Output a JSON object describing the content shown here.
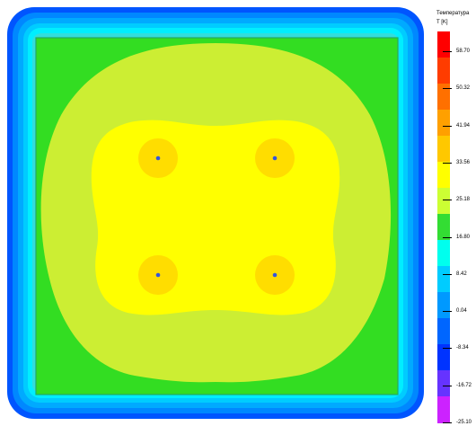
{
  "legend": {
    "title": "Температура",
    "unit": "T [K]",
    "ticks": [
      "58.70",
      "50.32",
      "41.94",
      "33.56",
      "25.18",
      "16.80",
      "8.42",
      "0.04",
      "-8.34",
      "-16.72",
      "-25.10"
    ],
    "colors": [
      "#ff0000",
      "#ff3c00",
      "#ff7000",
      "#ffa000",
      "#ffc800",
      "#ffff00",
      "#ccff33",
      "#33dd33",
      "#00ffee",
      "#00ccff",
      "#0099ff",
      "#0066ff",
      "#0033ff",
      "#6633ff",
      "#cc22ff"
    ]
  },
  "field": {
    "colors": {
      "outer_bands": [
        "#0055ff",
        "#0088ff",
        "#00aaff",
        "#00ccff",
        "#00eeff",
        "#33dddd"
      ],
      "background": "#33dd22",
      "mid_zone": "#ccee33",
      "inner_zone": "#ffff00",
      "heater_glow": "#ffdd00",
      "heater_point": "#3355dd",
      "frame_line": "#22aa66"
    },
    "heater_count": 4
  }
}
